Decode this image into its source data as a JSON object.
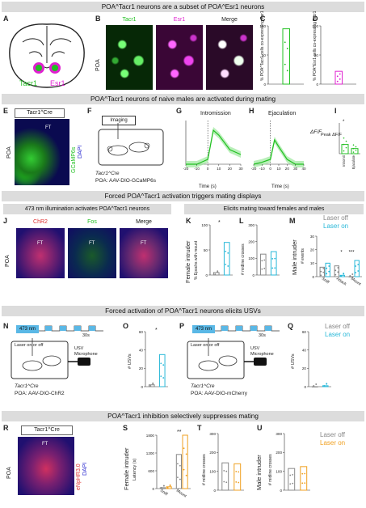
{
  "colors": {
    "green": "#22c022",
    "magenta": "#e020d0",
    "cyan": "#29b8d8",
    "orange": "#f0a020",
    "gray": "#888888",
    "band": "#dcdcdc",
    "blue": "#2a2ad0",
    "red": "#e03030"
  },
  "bands": {
    "b1": "POA^Tacr1 neurons are a subset of POA^Esr1 neurons",
    "b2": "POA^Tacr1 neurons of naive males are activated during mating",
    "b3": "Forced POA^Tacr1 activation triggers mating displays",
    "b4": "Forced activation of POA^Tacr1 neurons elicits USVs",
    "b5": "POA^Tacr1 inhibition selectively suppresses mating"
  },
  "panels": {
    "A": "A",
    "B": "B",
    "C": "C",
    "D": "D",
    "E": "E",
    "F": "F",
    "G": "G",
    "H": "H",
    "I": "I",
    "J": "J",
    "K": "K",
    "L": "L",
    "M": "M",
    "N": "N",
    "O": "O",
    "P": "P",
    "Q": "Q",
    "R": "R",
    "S": "S",
    "T": "T",
    "U": "U"
  },
  "panelA": {
    "tacr1": "Tacr1",
    "esr1": "Esr1"
  },
  "panelB": {
    "h1": "Tacr1",
    "h2": "Esr1",
    "h3": "Merge",
    "side": "POA"
  },
  "panelC": {
    "ylabel": "% POA^Tacr1 cells co-expressing Esr1",
    "ticks": [
      "100",
      "50",
      "0"
    ]
  },
  "panelD": {
    "ylabel": "% POA^Esr1 cells co-expressing Tacr1",
    "ticks": [
      "100",
      "50",
      "0"
    ]
  },
  "panelE": {
    "title": "Tacr1^Cre",
    "side": "POA",
    "ft": "FT",
    "stain1": "GCaMP6s",
    "stain2": "DAPI"
  },
  "panelF": {
    "box": "Imaging",
    "line1": "Tacr1^Cre",
    "line2": "POA: AAV-DIO-GCaMP6s"
  },
  "panelG": {
    "title": "Intromission",
    "xlabel": "Time (s)",
    "ylabel": "ΔF/F",
    "xticks": [
      "-20",
      "-10",
      "0",
      "10",
      "20",
      "30"
    ]
  },
  "panelH": {
    "title": "Ejaculation",
    "xlabel": "Time (s)",
    "xticks": [
      "-20",
      "-10",
      "0",
      "10",
      "20",
      "30",
      "40"
    ]
  },
  "panelI": {
    "ylabel": "Peak ΔF/F",
    "ticks": [
      "0.6",
      "0.4",
      "0.2",
      "0"
    ],
    "cats": [
      "Intromit",
      "Ejaculate"
    ],
    "sig": "*"
  },
  "panelJ": {
    "subtitle": "473 nm illumination activates POA^Tacr1 neurons",
    "h1": "ChR2",
    "h2": "Fos",
    "h3": "Merge",
    "side": "POA",
    "ft": "FT"
  },
  "rightSub": "Elicits mating toward females and males",
  "panelK": {
    "rowlabel": "Female intruder",
    "ylabel": "% Epochs with mount",
    "ticks": [
      "100",
      "50",
      "0"
    ],
    "sig": "*"
  },
  "panelL": {
    "ylabel": "# midline crosses",
    "ticks": [
      "300",
      "200",
      "100",
      "0"
    ]
  },
  "panelM": {
    "rowlabel": "Male intruder",
    "ylabel": "# events",
    "ticks": [
      "30",
      "20",
      "10",
      "0"
    ],
    "cats": [
      "Sniff",
      "Attack",
      "Mount"
    ],
    "sig1": "*",
    "sig2": "***"
  },
  "legendM": {
    "off": "Laser off",
    "on": "Laser on"
  },
  "panelN": {
    "box": "473 nm",
    "laser": "Laser on or off",
    "t": "30s",
    "usv": "USV Microphone",
    "line1": "Tacr1^Cre",
    "line2": "POA: AAV-DIO-ChR2"
  },
  "panelO": {
    "ylabel": "# USVs",
    "ticks": [
      "60",
      "40",
      "20",
      "0"
    ],
    "sig": "*"
  },
  "panelP": {
    "box": "473 nm",
    "laser": "Laser on or off",
    "t": "30s",
    "usv": "USV Microphone",
    "line1": "Tacr1^Cre",
    "line2": "POA: AAV-DIO-mCherry"
  },
  "panelQ": {
    "ylabel": "# USVs",
    "ticks": [
      "60",
      "40",
      "20",
      "0"
    ]
  },
  "legendQ": {
    "off": "Laser off",
    "on": "Laser on"
  },
  "panelR": {
    "title": "Tacr1^Cre",
    "side": "POA",
    "ft": "FT",
    "stain1": "eNpHR3.0",
    "stain2": "DAPI"
  },
  "panelS": {
    "rowlabel": "Female intruder",
    "ylabel": "Latency (s)",
    "ticks": [
      "1800",
      "1200",
      "600",
      "0"
    ],
    "cats": [
      "Sniff",
      "Mount"
    ],
    "sig": "**"
  },
  "panelT": {
    "ylabel": "# midline crosses",
    "ticks": [
      "300",
      "200",
      "100",
      "0"
    ]
  },
  "panelU": {
    "rowlabel": "Male intruder",
    "ylabel": "# midline crosses",
    "ticks": [
      "300",
      "200",
      "100",
      "0"
    ]
  },
  "legendU": {
    "off": "Laser off",
    "on": "Laser on"
  },
  "chart_data": [
    {
      "panel": "C",
      "type": "bar",
      "categories": [
        ""
      ],
      "values": [
        95
      ],
      "ylim": [
        0,
        100
      ]
    },
    {
      "panel": "D",
      "type": "bar",
      "categories": [
        ""
      ],
      "values": [
        22
      ],
      "ylim": [
        0,
        100
      ]
    },
    {
      "panel": "G",
      "type": "line",
      "x": [
        -20,
        -10,
        0,
        5,
        10,
        20,
        30
      ],
      "y": [
        0,
        0,
        0.05,
        0.35,
        0.3,
        0.15,
        0.1
      ],
      "xlim": [
        -20,
        30
      ]
    },
    {
      "panel": "H",
      "type": "line",
      "x": [
        -20,
        -10,
        0,
        5,
        10,
        20,
        30,
        40
      ],
      "y": [
        0,
        0.02,
        0.05,
        0.25,
        0.18,
        0.05,
        0,
        0
      ],
      "xlim": [
        -20,
        40
      ]
    },
    {
      "panel": "I",
      "type": "bar",
      "categories": [
        "Intromit",
        "Ejaculate"
      ],
      "values": [
        0.18,
        0.1
      ],
      "ylim": [
        0,
        0.6
      ]
    },
    {
      "panel": "K",
      "type": "bar",
      "categories": [
        "Laser off",
        "Laser on"
      ],
      "values": [
        5,
        65
      ],
      "ylim": [
        0,
        100
      ]
    },
    {
      "panel": "L",
      "type": "bar",
      "categories": [
        "Laser off",
        "Laser on"
      ],
      "values": [
        125,
        140
      ],
      "ylim": [
        0,
        300
      ]
    },
    {
      "panel": "M",
      "type": "bar",
      "categories": [
        "Sniff",
        "Attack",
        "Mount"
      ],
      "series": [
        {
          "name": "Laser off",
          "values": [
            7,
            8,
            0
          ]
        },
        {
          "name": "Laser on",
          "values": [
            10,
            1,
            12
          ]
        }
      ],
      "ylim": [
        0,
        30
      ]
    },
    {
      "panel": "O",
      "type": "bar",
      "categories": [
        "Laser off",
        "Laser on"
      ],
      "values": [
        2,
        35
      ],
      "ylim": [
        0,
        60
      ]
    },
    {
      "panel": "Q",
      "type": "bar",
      "categories": [
        "Laser off",
        "Laser on"
      ],
      "values": [
        0,
        1
      ],
      "ylim": [
        0,
        60
      ]
    },
    {
      "panel": "S",
      "type": "bar",
      "categories": [
        "Sniff",
        "Mount"
      ],
      "series": [
        {
          "name": "Laser off",
          "values": [
            30,
            1150
          ]
        },
        {
          "name": "Laser on",
          "values": [
            60,
            1800
          ]
        }
      ],
      "ylim": [
        0,
        1800
      ]
    },
    {
      "panel": "T",
      "type": "bar",
      "categories": [
        "Laser off",
        "Laser on"
      ],
      "values": [
        145,
        140
      ],
      "ylim": [
        0,
        300
      ]
    },
    {
      "panel": "U",
      "type": "bar",
      "categories": [
        "Laser off",
        "Laser on"
      ],
      "values": [
        115,
        125
      ],
      "ylim": [
        0,
        300
      ]
    }
  ]
}
